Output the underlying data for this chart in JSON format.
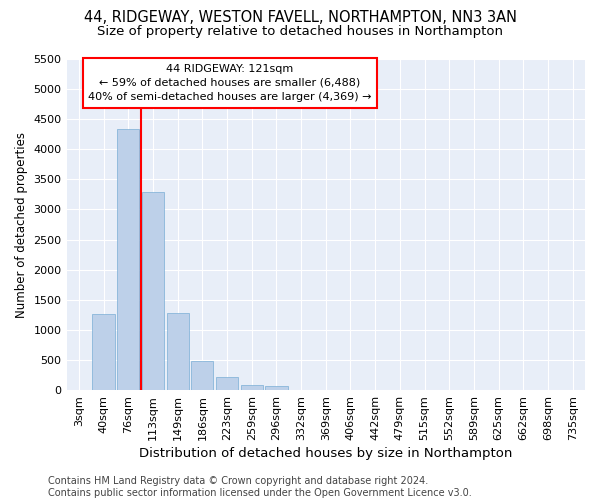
{
  "title_line1": "44, RIDGEWAY, WESTON FAVELL, NORTHAMPTON, NN3 3AN",
  "title_line2": "Size of property relative to detached houses in Northampton",
  "xlabel": "Distribution of detached houses by size in Northampton",
  "ylabel": "Number of detached properties",
  "bar_labels": [
    "3sqm",
    "40sqm",
    "76sqm",
    "113sqm",
    "149sqm",
    "186sqm",
    "223sqm",
    "259sqm",
    "296sqm",
    "332sqm",
    "369sqm",
    "406sqm",
    "442sqm",
    "479sqm",
    "515sqm",
    "552sqm",
    "589sqm",
    "625sqm",
    "662sqm",
    "698sqm",
    "735sqm"
  ],
  "bar_values": [
    0,
    1270,
    4330,
    3290,
    1280,
    490,
    210,
    90,
    60,
    0,
    0,
    0,
    0,
    0,
    0,
    0,
    0,
    0,
    0,
    0,
    0
  ],
  "bar_color": "#bdd0e9",
  "bar_edgecolor": "#7aaed6",
  "bg_color": "#e8eef8",
  "grid_color": "#ffffff",
  "vline_x": 2.5,
  "vline_color": "red",
  "ylim": [
    0,
    5500
  ],
  "yticks": [
    0,
    500,
    1000,
    1500,
    2000,
    2500,
    3000,
    3500,
    4000,
    4500,
    5000,
    5500
  ],
  "annotation_line1": "44 RIDGEWAY: 121sqm",
  "annotation_line2": "← 59% of detached houses are smaller (6,488)",
  "annotation_line3": "40% of semi-detached houses are larger (4,369) →",
  "annotation_box_color": "white",
  "annotation_box_edgecolor": "red",
  "footnote": "Contains HM Land Registry data © Crown copyright and database right 2024.\nContains public sector information licensed under the Open Government Licence v3.0.",
  "title_fontsize": 10.5,
  "subtitle_fontsize": 9.5,
  "xlabel_fontsize": 9.5,
  "ylabel_fontsize": 8.5,
  "tick_fontsize": 8,
  "annot_fontsize": 8,
  "footnote_fontsize": 7
}
